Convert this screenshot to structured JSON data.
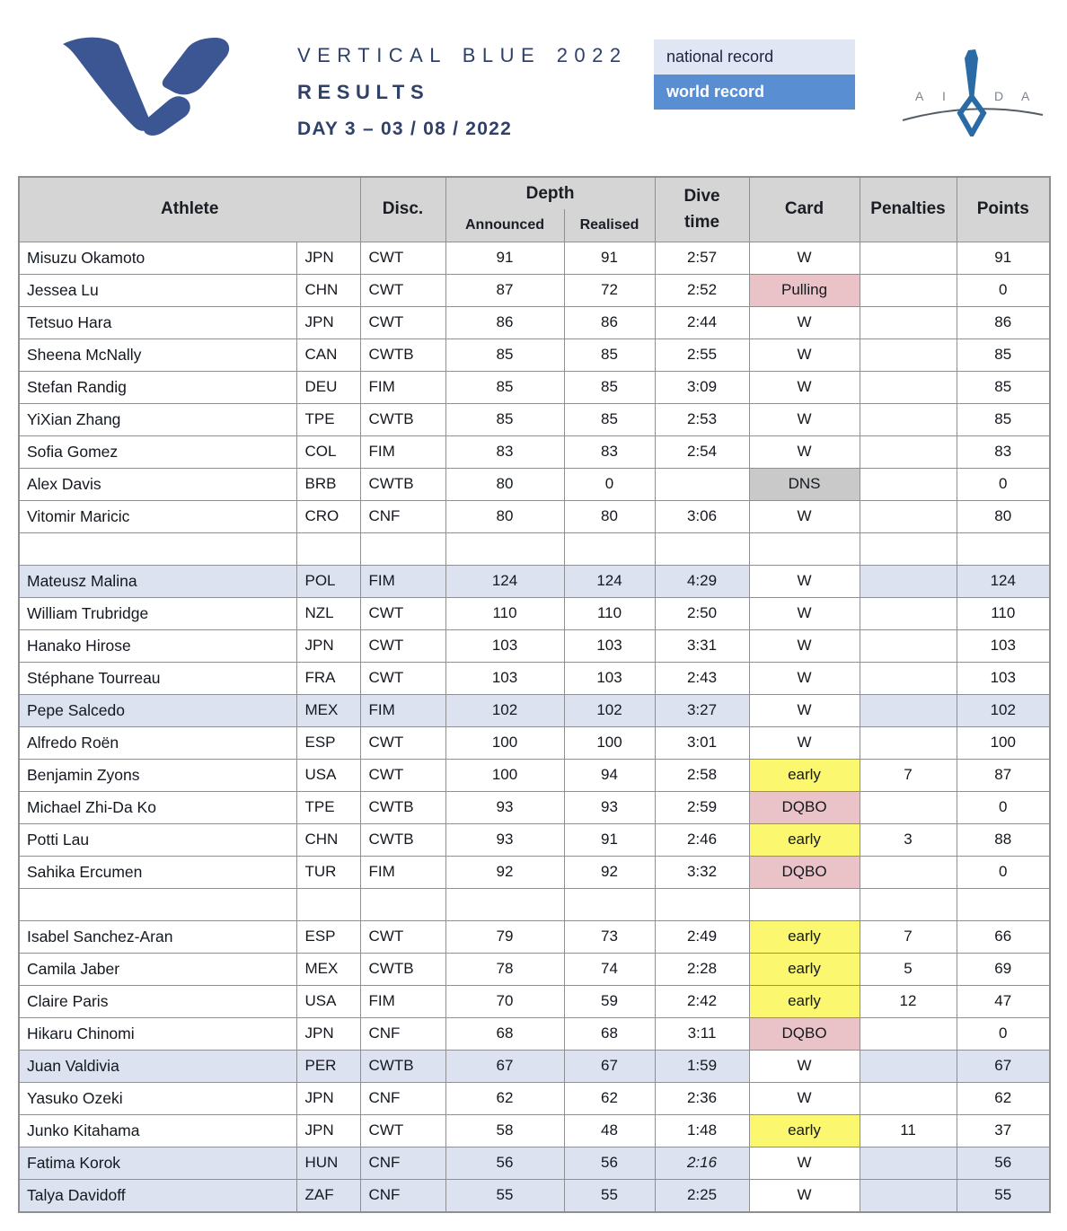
{
  "header": {
    "title": "VERTICAL BLUE 2022",
    "subtitle": "RESULTS",
    "day_line": "DAY 3  –  03 / 08 / 2022"
  },
  "legend": {
    "national_record": "national record",
    "world_record": "world record"
  },
  "aida": {
    "letters": [
      "A",
      "I",
      "D",
      "A"
    ]
  },
  "table": {
    "header": {
      "athlete": "Athlete",
      "disc": "Disc.",
      "depth": "Depth",
      "announced": "Announced",
      "realised": "Realised",
      "dive_line1": "Dive",
      "dive_line2": "time",
      "card": "Card",
      "penalties": "Penalties",
      "points": "Points"
    },
    "rows": [
      {
        "name": "Misuzu Okamoto",
        "country": "JPN",
        "disc": "CWT",
        "announced": "91",
        "realised": "91",
        "dive_time": "2:57",
        "card": "W",
        "card_style": "plain",
        "penalties": "",
        "points": "91",
        "highlight": false,
        "blank": false
      },
      {
        "name": "Jessea Lu",
        "country": "CHN",
        "disc": "CWT",
        "announced": "87",
        "realised": "72",
        "dive_time": "2:52",
        "card": "Pulling",
        "card_style": "pink",
        "penalties": "",
        "points": "0",
        "highlight": false,
        "blank": false
      },
      {
        "name": "Tetsuo Hara",
        "country": "JPN",
        "disc": "CWT",
        "announced": "86",
        "realised": "86",
        "dive_time": "2:44",
        "card": "W",
        "card_style": "plain",
        "penalties": "",
        "points": "86",
        "highlight": false,
        "blank": false
      },
      {
        "name": "Sheena McNally",
        "country": "CAN",
        "disc": "CWTB",
        "announced": "85",
        "realised": "85",
        "dive_time": "2:55",
        "card": "W",
        "card_style": "plain",
        "penalties": "",
        "points": "85",
        "highlight": false,
        "blank": false
      },
      {
        "name": "Stefan Randig",
        "country": "DEU",
        "disc": "FIM",
        "announced": "85",
        "realised": "85",
        "dive_time": "3:09",
        "card": "W",
        "card_style": "plain",
        "penalties": "",
        "points": "85",
        "highlight": false,
        "blank": false
      },
      {
        "name": "YiXian Zhang",
        "country": "TPE",
        "disc": "CWTB",
        "announced": "85",
        "realised": "85",
        "dive_time": "2:53",
        "card": "W",
        "card_style": "plain",
        "penalties": "",
        "points": "85",
        "highlight": false,
        "blank": false
      },
      {
        "name": "Sofia Gomez",
        "country": "COL",
        "disc": "FIM",
        "announced": "83",
        "realised": "83",
        "dive_time": "2:54",
        "card": "W",
        "card_style": "plain",
        "penalties": "",
        "points": "83",
        "highlight": false,
        "blank": false
      },
      {
        "name": "Alex Davis",
        "country": "BRB",
        "disc": "CWTB",
        "announced": "80",
        "realised": "0",
        "dive_time": "",
        "card": "DNS",
        "card_style": "gray",
        "penalties": "",
        "points": "0",
        "highlight": false,
        "blank": false
      },
      {
        "name": "Vitomir Maricic",
        "country": "CRO",
        "disc": "CNF",
        "announced": "80",
        "realised": "80",
        "dive_time": "3:06",
        "card": "W",
        "card_style": "plain",
        "penalties": "",
        "points": "80",
        "highlight": false,
        "blank": false
      },
      {
        "name": "",
        "country": "",
        "disc": "",
        "announced": "",
        "realised": "",
        "dive_time": "",
        "card": "",
        "card_style": "plain",
        "penalties": "",
        "points": "",
        "highlight": false,
        "blank": true
      },
      {
        "name": "Mateusz Malina",
        "country": "POL",
        "disc": "FIM",
        "announced": "124",
        "realised": "124",
        "dive_time": "4:29",
        "card": "W",
        "card_style": "plain",
        "penalties": "",
        "points": "124",
        "highlight": true,
        "blank": false
      },
      {
        "name": "William Trubridge",
        "country": "NZL",
        "disc": "CWT",
        "announced": "110",
        "realised": "110",
        "dive_time": "2:50",
        "card": "W",
        "card_style": "plain",
        "penalties": "",
        "points": "110",
        "highlight": false,
        "blank": false
      },
      {
        "name": "Hanako Hirose",
        "country": "JPN",
        "disc": "CWT",
        "announced": "103",
        "realised": "103",
        "dive_time": "3:31",
        "card": "W",
        "card_style": "plain",
        "penalties": "",
        "points": "103",
        "highlight": false,
        "blank": false
      },
      {
        "name": "Stéphane Tourreau",
        "country": "FRA",
        "disc": "CWT",
        "announced": "103",
        "realised": "103",
        "dive_time": "2:43",
        "card": "W",
        "card_style": "plain",
        "penalties": "",
        "points": "103",
        "highlight": false,
        "blank": false
      },
      {
        "name": "Pepe Salcedo",
        "country": "MEX",
        "disc": "FIM",
        "announced": "102",
        "realised": "102",
        "dive_time": "3:27",
        "card": "W",
        "card_style": "plain",
        "penalties": "",
        "points": "102",
        "highlight": true,
        "blank": false
      },
      {
        "name": "Alfredo Roën",
        "country": "ESP",
        "disc": "CWT",
        "announced": "100",
        "realised": "100",
        "dive_time": "3:01",
        "card": "W",
        "card_style": "plain",
        "penalties": "",
        "points": "100",
        "highlight": false,
        "blank": false
      },
      {
        "name": "Benjamin Zyons",
        "country": "USA",
        "disc": "CWT",
        "announced": "100",
        "realised": "94",
        "dive_time": "2:58",
        "card": "early",
        "card_style": "yellow",
        "penalties": "7",
        "points": "87",
        "highlight": false,
        "blank": false
      },
      {
        "name": "Michael Zhi-Da Ko",
        "country": "TPE",
        "disc": "CWTB",
        "announced": "93",
        "realised": "93",
        "dive_time": "2:59",
        "card": "DQBO",
        "card_style": "pink",
        "penalties": "",
        "points": "0",
        "highlight": false,
        "blank": false
      },
      {
        "name": "Potti Lau",
        "country": "CHN",
        "disc": "CWTB",
        "announced": "93",
        "realised": "91",
        "dive_time": "2:46",
        "card": "early",
        "card_style": "yellow",
        "penalties": "3",
        "points": "88",
        "highlight": false,
        "blank": false
      },
      {
        "name": "Sahika Ercumen",
        "country": "TUR",
        "disc": "FIM",
        "announced": "92",
        "realised": "92",
        "dive_time": "3:32",
        "card": "DQBO",
        "card_style": "pink",
        "penalties": "",
        "points": "0",
        "highlight": false,
        "blank": false
      },
      {
        "name": "",
        "country": "",
        "disc": "",
        "announced": "",
        "realised": "",
        "dive_time": "",
        "card": "",
        "card_style": "plain",
        "penalties": "",
        "points": "",
        "highlight": false,
        "blank": true
      },
      {
        "name": "Isabel Sanchez-Aran",
        "country": "ESP",
        "disc": "CWT",
        "announced": "79",
        "realised": "73",
        "dive_time": "2:49",
        "card": "early",
        "card_style": "yellow",
        "penalties": "7",
        "points": "66",
        "highlight": false,
        "blank": false
      },
      {
        "name": "Camila Jaber",
        "country": "MEX",
        "disc": "CWTB",
        "announced": "78",
        "realised": "74",
        "dive_time": "2:28",
        "card": "early",
        "card_style": "yellow",
        "penalties": "5",
        "points": "69",
        "highlight": false,
        "blank": false
      },
      {
        "name": "Claire Paris",
        "country": "USA",
        "disc": "FIM",
        "announced": "70",
        "realised": "59",
        "dive_time": "2:42",
        "card": "early",
        "card_style": "yellow",
        "penalties": "12",
        "points": "47",
        "highlight": false,
        "blank": false
      },
      {
        "name": "Hikaru Chinomi",
        "country": "JPN",
        "disc": "CNF",
        "announced": "68",
        "realised": "68",
        "dive_time": "3:11",
        "card": "DQBO",
        "card_style": "pink",
        "penalties": "",
        "points": "0",
        "highlight": false,
        "blank": false
      },
      {
        "name": "Juan Valdivia",
        "country": "PER",
        "disc": "CWTB",
        "announced": "67",
        "realised": "67",
        "dive_time": "1:59",
        "card": "W",
        "card_style": "plain",
        "penalties": "",
        "points": "67",
        "highlight": true,
        "blank": false
      },
      {
        "name": "Yasuko Ozeki",
        "country": "JPN",
        "disc": "CNF",
        "announced": "62",
        "realised": "62",
        "dive_time": "2:36",
        "card": "W",
        "card_style": "plain",
        "penalties": "",
        "points": "62",
        "highlight": false,
        "blank": false
      },
      {
        "name": "Junko Kitahama",
        "country": "JPN",
        "disc": "CWT",
        "announced": "58",
        "realised": "48",
        "dive_time": "1:48",
        "card": "early",
        "card_style": "yellow",
        "penalties": "11",
        "points": "37",
        "highlight": false,
        "blank": false
      },
      {
        "name": "Fatima Korok",
        "country": "HUN",
        "disc": "CNF",
        "announced": "56",
        "realised": "56",
        "dive_time": "2:16",
        "dive_time_italic": true,
        "card": "W",
        "card_style": "plain",
        "penalties": "",
        "points": "56",
        "highlight": true,
        "blank": false
      },
      {
        "name": "Talya Davidoff",
        "country": "ZAF",
        "disc": "CNF",
        "announced": "55",
        "realised": "55",
        "dive_time": "2:25",
        "card": "W",
        "card_style": "plain",
        "penalties": "",
        "points": "55",
        "highlight": true,
        "blank": false
      }
    ]
  },
  "colors": {
    "brand_blue": "#3c5694",
    "title_navy": "#2f4069",
    "header_bg": "#d5d5d5",
    "border_gray": "#8f8f8f",
    "row_highlight_bg": "#dce2f0",
    "card_pink": "#eac3c8",
    "card_yellow": "#fbf76e",
    "card_gray": "#c9c9c9",
    "legend_national_bg": "#e0e6f3",
    "legend_world_bg": "#5a8ed3",
    "aida_blue": "#2a6aa5",
    "aida_gray": "#7d838e",
    "text_dark": "#14181f"
  }
}
